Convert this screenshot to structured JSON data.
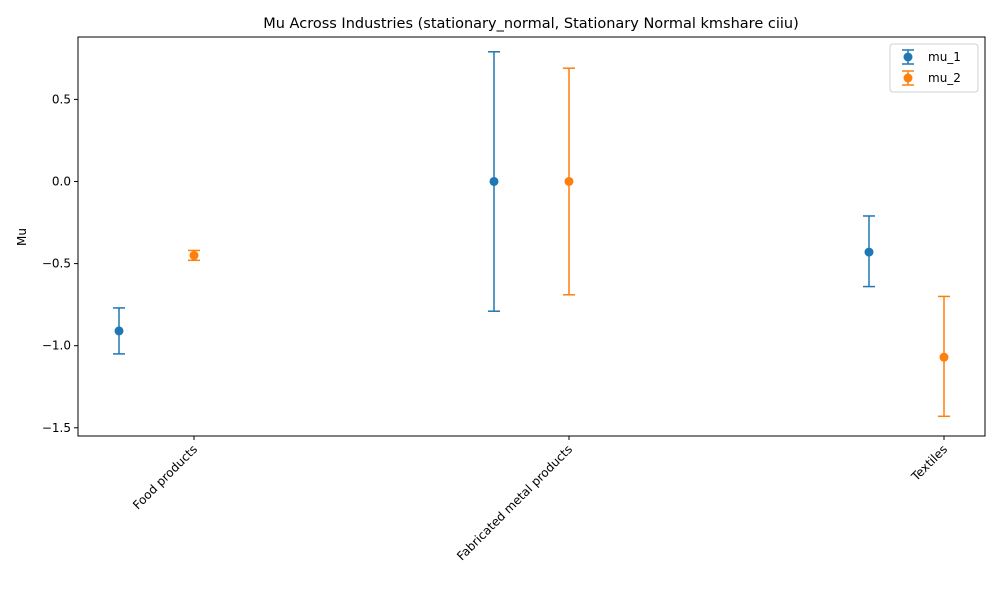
{
  "chart_data": {
    "type": "scatter",
    "title": "Mu Across Industries (stationary_normal, Stationary Normal kmshare ciiu)",
    "xlabel": "",
    "ylabel": "Mu",
    "categories": [
      "Food products",
      "Fabricated metal products",
      "Textiles"
    ],
    "ylim": [
      -1.55,
      0.88
    ],
    "yticks": [
      -1.5,
      -1.0,
      -0.5,
      0.0,
      0.5
    ],
    "ytick_labels": [
      "−1.5",
      "−1.0",
      "−0.5",
      "0.0",
      "0.5"
    ],
    "grid": false,
    "legend_position": "top-right",
    "series": [
      {
        "name": "mu_1",
        "color": "#1f77b4",
        "values": [
          -0.91,
          0.0,
          -0.43
        ],
        "err_lower": [
          -1.05,
          -0.79,
          -0.64
        ],
        "err_upper": [
          -0.77,
          0.79,
          -0.21
        ]
      },
      {
        "name": "mu_2",
        "color": "#ff7f0e",
        "values": [
          -0.45,
          0.0,
          -1.07
        ],
        "err_lower": [
          -0.48,
          -0.69,
          -1.43
        ],
        "err_upper": [
          -0.42,
          0.69,
          -0.7
        ]
      }
    ]
  }
}
